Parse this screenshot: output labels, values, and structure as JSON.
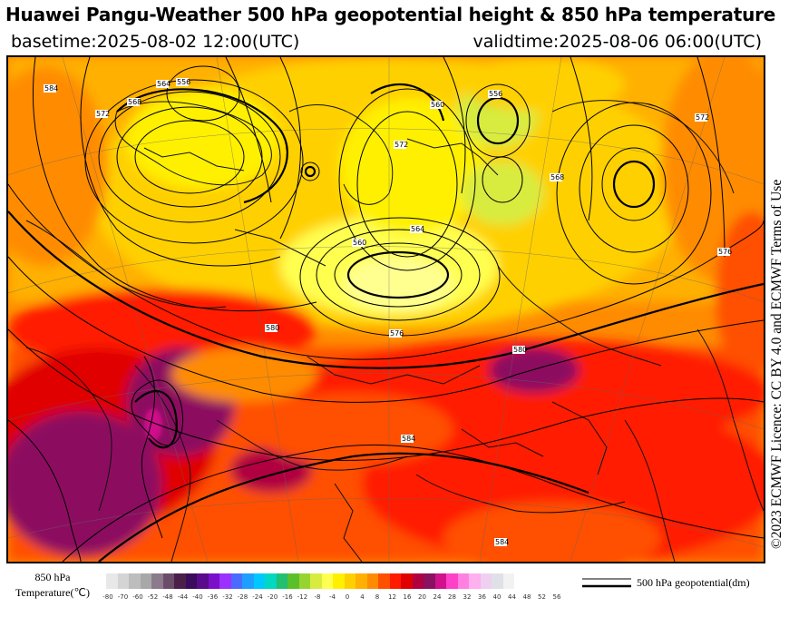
{
  "header": {
    "title": "Huawei Pangu-Weather 500 hPa geopotential height & 850 hPa temperature",
    "basetime": "basetime:2025-08-02 12:00(UTC)",
    "validtime": "validtime:2025-08-06 06:00(UTC)"
  },
  "licence": "©2023 ECMWF Licence: CC BY 4.0 and ECMWF Terms of Use",
  "legend": {
    "temperature_title_line1": "850 hPa",
    "temperature_title_line2": "Temperature(℃)",
    "temperature_ticks": [
      "-80",
      "-70",
      "-60",
      "-52",
      "-48",
      "-44",
      "-40",
      "-36",
      "-32",
      "-28",
      "-24",
      "-20",
      "-16",
      "-12",
      "-8",
      "-4",
      "0",
      "4",
      "8",
      "12",
      "16",
      "20",
      "24",
      "28",
      "32",
      "36",
      "40",
      "44",
      "48",
      "52",
      "56"
    ],
    "temperature_colors": [
      "#e8e8e8",
      "#d4d4d4",
      "#bdbdbd",
      "#a8a8a8",
      "#8c7b8c",
      "#6b4d6b",
      "#4a1f4a",
      "#3b0b5c",
      "#5a0a8c",
      "#7a10c8",
      "#9b30ff",
      "#4b6bff",
      "#1e9fff",
      "#00c8ff",
      "#00d8c0",
      "#22c070",
      "#5ac02a",
      "#98d430",
      "#d8ec40",
      "#ffff50",
      "#fff000",
      "#ffd000",
      "#ffb000",
      "#ff8c00",
      "#ff5000",
      "#ff1a00",
      "#e00000",
      "#b00040",
      "#8c1060",
      "#d0108c",
      "#ff40c8",
      "#ff80e0",
      "#ffb0ee",
      "#f0d0f0",
      "#e0e0e8",
      "#f2f2f2"
    ],
    "geopotential_label": "500 hPa geopotential(dm)"
  },
  "map": {
    "contour_labels": [
      "584",
      "572",
      "568",
      "564",
      "556",
      "560",
      "572",
      "576",
      "584",
      "580",
      "560",
      "564",
      "556",
      "568",
      "572",
      "576",
      "580",
      "584"
    ]
  }
}
